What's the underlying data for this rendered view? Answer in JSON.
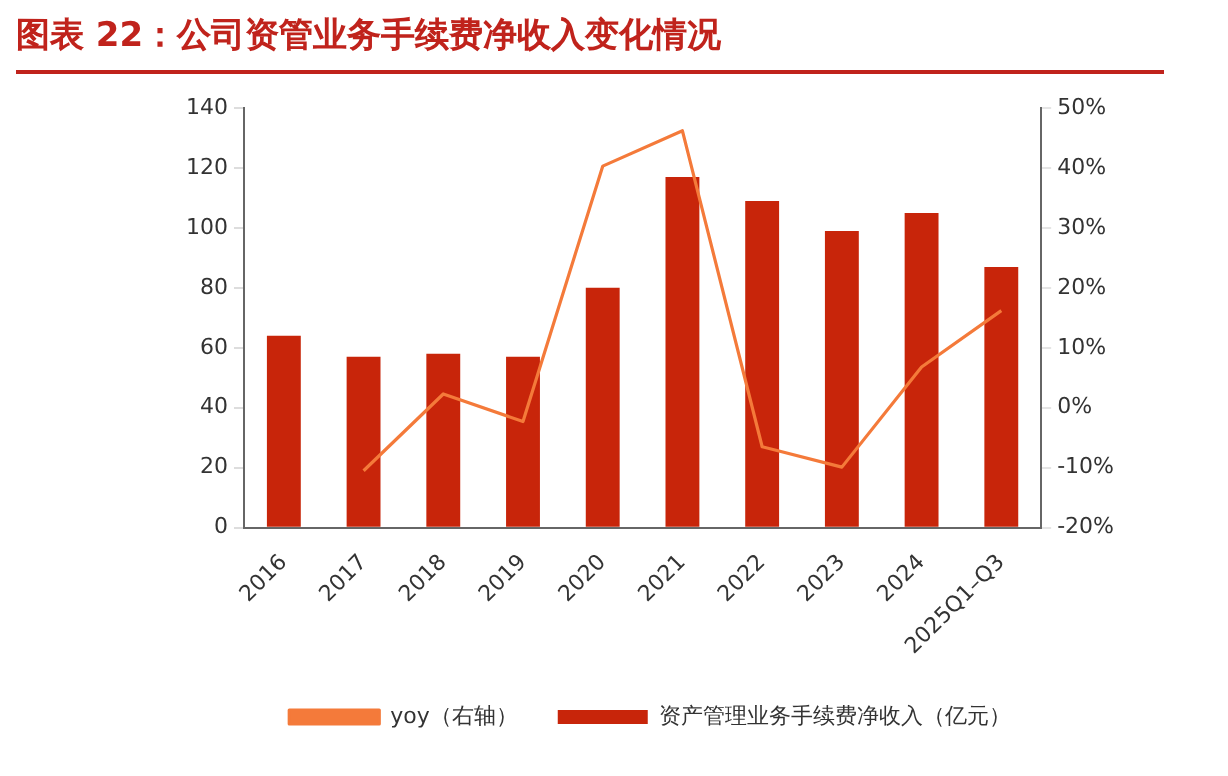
{
  "chart_data": {
    "type": "bar",
    "title": "图表 22：公司资管业务手续费净收入变化情况",
    "categories": [
      "2016",
      "2017",
      "2018",
      "2019",
      "2020",
      "2021",
      "2022",
      "2023",
      "2024",
      "2025Q1–Q3"
    ],
    "series": [
      {
        "name": "资产管理业务手续费净收入（亿元）",
        "color": "#c8250a",
        "values": [
          64,
          57,
          58,
          57,
          80,
          117,
          109,
          99,
          105,
          87
        ]
      },
      {
        "name": "yoy（右轴）",
        "type": "line",
        "axis": "y2",
        "color": "#f47a3a",
        "values": [
          null,
          -10.5,
          2.3,
          -2.3,
          40.3,
          46.2,
          -6.5,
          -9.9,
          6.8,
          16.2
        ]
      }
    ],
    "ylim": [
      0,
      140
    ],
    "yticks": [
      0,
      20,
      40,
      60,
      80,
      100,
      120,
      140
    ],
    "y2lim": [
      -20,
      50
    ],
    "y2ticks": [
      {
        "value": -20,
        "label": "-20%"
      },
      {
        "value": -10,
        "label": "-10%"
      },
      {
        "value": 0,
        "label": "0%"
      },
      {
        "value": 10,
        "label": "10%"
      },
      {
        "value": 20,
        "label": "20%"
      },
      {
        "value": 30,
        "label": "30%"
      },
      {
        "value": 40,
        "label": "40%"
      },
      {
        "value": 50,
        "label": "50%"
      }
    ],
    "grid": false,
    "legend": "bottom",
    "marker": "none",
    "line_style": "solid"
  }
}
